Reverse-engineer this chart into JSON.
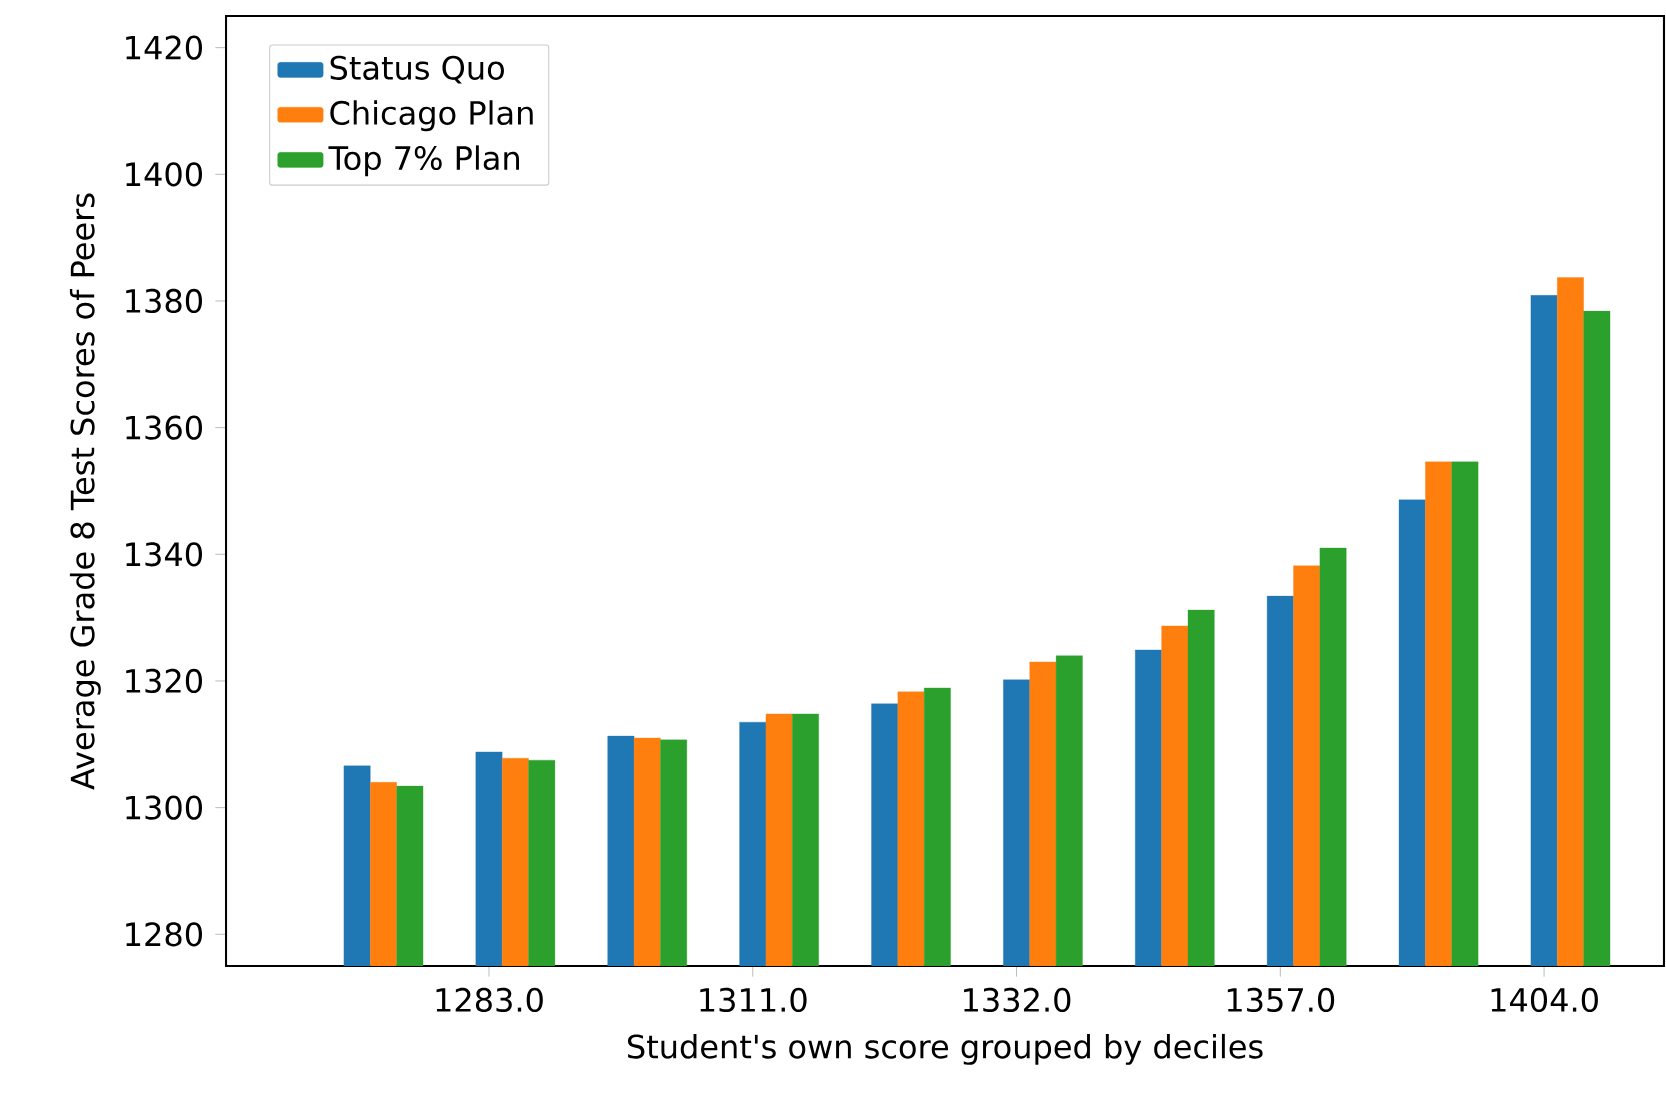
{
  "chart_data": {
    "type": "bar",
    "xlabel": "Student's own score grouped by deciles",
    "ylabel": "Average Grade 8 Test Scores of Peers",
    "categories": [
      null,
      "1283.0",
      null,
      "1311.0",
      null,
      "1332.0",
      null,
      "1357.0",
      null,
      "1404.0"
    ],
    "series": [
      {
        "name": "Status Quo",
        "color": "#1f77b4",
        "values": [
          1306.6,
          1308.8,
          1311.3,
          1313.5,
          1316.4,
          1320.2,
          1324.9,
          1333.4,
          1348.6,
          1380.9
        ]
      },
      {
        "name": "Chicago Plan",
        "color": "#ff7f0e",
        "values": [
          1304.0,
          1307.8,
          1311.0,
          1314.8,
          1318.3,
          1323.0,
          1328.7,
          1338.2,
          1354.6,
          1383.7
        ]
      },
      {
        "name": "Top 7% Plan",
        "color": "#2ca02c",
        "values": [
          1303.4,
          1307.5,
          1310.7,
          1314.8,
          1318.9,
          1324.0,
          1331.2,
          1341.0,
          1354.6,
          1378.4
        ]
      }
    ],
    "ylim": [
      1275,
      1425
    ],
    "yticks": [
      1280,
      1300,
      1320,
      1340,
      1360,
      1380,
      1400,
      1420
    ],
    "legend": "top left",
    "grid": false
  }
}
